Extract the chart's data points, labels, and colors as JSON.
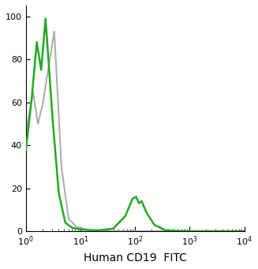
{
  "title": "",
  "xlabel": "Human CD19  FITC",
  "ylabel": "",
  "xlim_log": [
    1,
    10000
  ],
  "ylim": [
    0,
    105
  ],
  "yticks": [
    0,
    20,
    40,
    60,
    80,
    100
  ],
  "green_color": "#22aa22",
  "gray_color": "#aaaaaa",
  "green_lw": 1.8,
  "gray_lw": 1.4,
  "background_color": "#ffffff",
  "figsize": [
    3.27,
    3.41
  ],
  "dpi": 100
}
